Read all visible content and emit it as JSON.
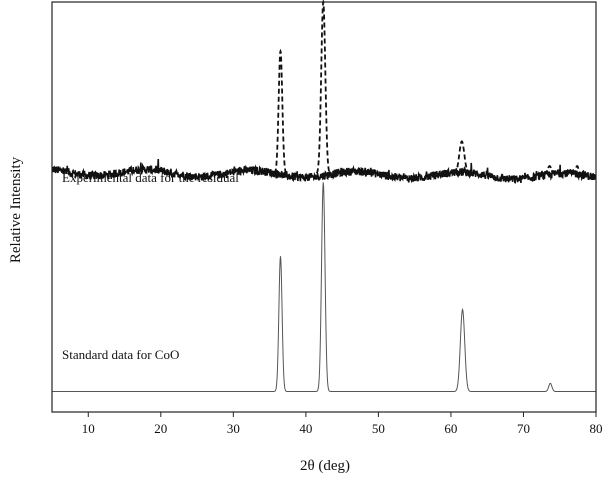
{
  "chart_data": {
    "type": "line",
    "title": "",
    "xlabel": "2θ (deg)",
    "ylabel": "Relative Intensity",
    "xlim": [
      5,
      80
    ],
    "xticks": [
      10,
      20,
      30,
      40,
      50,
      60,
      70,
      80
    ],
    "yticks_shown": false,
    "grid": false,
    "annotations": [
      {
        "id": "experimental",
        "text": "Experimental data for the residual"
      },
      {
        "id": "standard",
        "text": "Standard data for CoO"
      }
    ],
    "series": [
      {
        "id": "experimental",
        "style": "noisy line with dashed peaks",
        "baseline": 0.58,
        "noise": 0.01,
        "x_peaks": [
          36.5,
          42.4,
          61.5,
          73.6,
          77.4
        ],
        "peak_heights": [
          0.88,
          1.0,
          0.66,
          0.6,
          0.6
        ],
        "peak_widths": [
          0.25,
          0.28,
          0.35,
          0.25,
          0.2
        ]
      },
      {
        "id": "standard",
        "style": "thin solid line",
        "baseline": 0.05,
        "x_peaks": [
          36.5,
          42.4,
          61.6,
          73.7,
          77.5
        ],
        "peak_heights": [
          0.38,
          0.56,
          0.25,
          0.07,
          0.05
        ],
        "peak_widths": [
          0.22,
          0.24,
          0.3,
          0.22,
          0.2
        ]
      }
    ]
  },
  "colors": {
    "axis": "#222222",
    "experimental": "#111111",
    "standard": "#555555",
    "text": "#111111"
  }
}
